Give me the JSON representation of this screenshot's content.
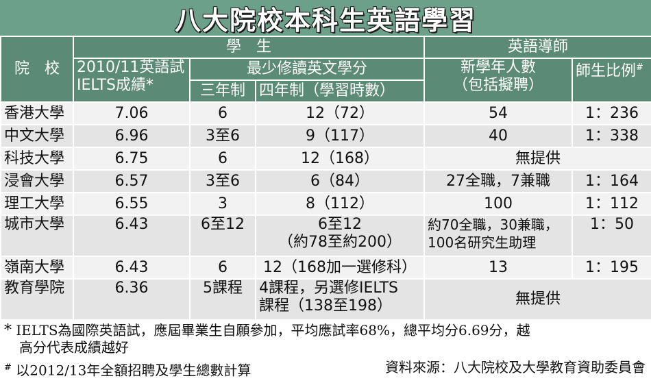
{
  "title": "八大院校本科生英語學習",
  "header": {
    "school": "院　校",
    "students": "學　生",
    "tutors": "英語導師",
    "ielts_line1": "2010/11英語試",
    "ielts_line2": "IELTS成績*",
    "min_credits": "最少修讀英文學分",
    "three_year": "三年制",
    "four_year": "四年制（學習時數）",
    "new_staff_line1": "新學年人數",
    "new_staff_line2": "（包括擬聘）",
    "ratio": "師生比例",
    "ratio_mark": "#"
  },
  "rows": [
    {
      "school": "香港大學",
      "ielts": "7.06",
      "three": "6",
      "four": "12（72）",
      "staff": "54",
      "ratio": "1：236"
    },
    {
      "school": "中文大學",
      "ielts": "6.96",
      "three": "3至6",
      "four": "9（117）",
      "staff": "40",
      "ratio": "1：338"
    },
    {
      "school": "科技大學",
      "ielts": "6.75",
      "three": "6",
      "four": "12（168）",
      "staff": "無提供"
    },
    {
      "school": "浸會大學",
      "ielts": "6.57",
      "three": "3至6",
      "four": "6（84）",
      "staff": "27全職，7兼職",
      "ratio": "1：164"
    },
    {
      "school": "理工大學",
      "ielts": "6.55",
      "three": "3",
      "four": "8（112）",
      "staff": "100",
      "ratio": "1：112"
    },
    {
      "school": "城市大學",
      "ielts": "6.43",
      "three": "6至12",
      "four_line1": "6至12",
      "four_line2": "（約78至約200）",
      "staff_line1": "約70全職，30兼職，",
      "staff_line2": "100名研究生助理",
      "ratio": "1：50"
    },
    {
      "school": "嶺南大學",
      "ielts": "6.43",
      "three": "6",
      "four": "12（168加一選修科）",
      "staff": "13",
      "ratio": "1：195"
    },
    {
      "school": "教育學院",
      "ielts": "6.36",
      "three": "5課程",
      "four_line1": "4課程，另選修IELTS",
      "four_line2": "課程（138至198）",
      "staff": "無提供"
    }
  ],
  "notes": {
    "star_mark": "*",
    "note1_line1": "IELTS為國際英語試，應屆畢業生自願參加，平均應試率68%，總平均分6.69分，越",
    "note1_line2": "高分代表成績越好",
    "hash_mark": "#",
    "note2": "以2012/13年全額招聘及學生總數計算",
    "source": "資料來源：八大院校及大學教育資助委員會"
  },
  "colors": {
    "title_bg": "#6da08a",
    "header_bg": "#5b8a76",
    "row_light": "#f2f2f2",
    "row_dark": "#e4e4e4"
  }
}
